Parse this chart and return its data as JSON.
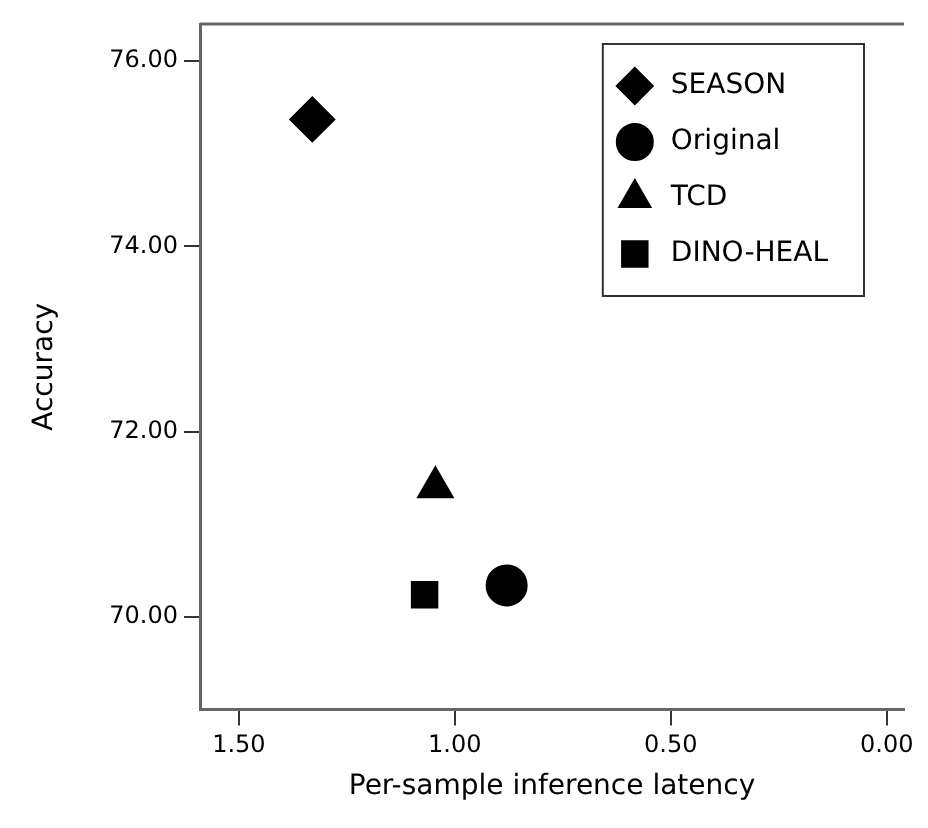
{
  "chart_data": {
    "type": "scatter",
    "xlabel": "Per-sample inference latency",
    "ylabel": "Accuracy",
    "xlim": [
      1.59,
      -0.04
    ],
    "ylim": [
      69.0,
      76.4
    ],
    "xticks": [
      {
        "value": 1.5,
        "label": "1.50"
      },
      {
        "value": 1,
        "label": "1.00"
      },
      {
        "value": 0.5,
        "label": "0.50"
      },
      {
        "value": 0,
        "label": "0.00"
      }
    ],
    "yticks": [
      {
        "value": 70,
        "label": "70.00"
      },
      {
        "value": 72,
        "label": "72.00"
      },
      {
        "value": 74,
        "label": "74.00"
      },
      {
        "value": 76,
        "label": "76.00"
      }
    ],
    "grid": false,
    "legend": "top right",
    "series": [
      {
        "name": "SEASON",
        "color": "#000000",
        "marker": "diamond",
        "x": [
          1.33
        ],
        "values": [
          75.37
        ]
      },
      {
        "name": "Original",
        "color": "#000000",
        "marker": "circle",
        "x": [
          0.88
        ],
        "values": [
          70.34
        ]
      },
      {
        "name": "TCD",
        "color": "#000000",
        "marker": "triangle",
        "x": [
          1.045
        ],
        "values": [
          71.4
        ]
      },
      {
        "name": "DINO-HEAL",
        "color": "#000000",
        "marker": "square",
        "x": [
          1.07
        ],
        "values": [
          70.24
        ]
      }
    ]
  }
}
